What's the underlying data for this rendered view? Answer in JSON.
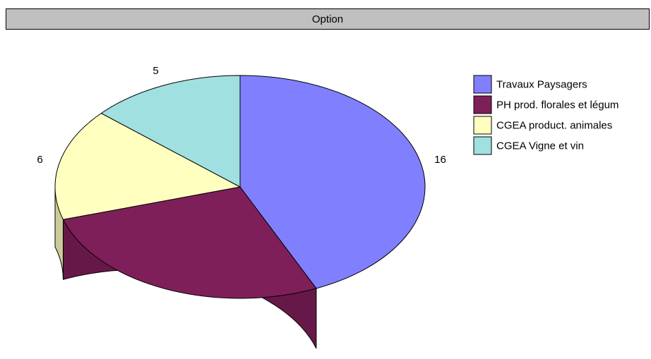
{
  "chart_data": {
    "type": "pie",
    "title": "Option",
    "categories": [
      "Travaux Paysagers",
      "PH prod. florales et légum",
      "CGEA product. animales",
      "CGEA Vigne et vin"
    ],
    "values": [
      16,
      10,
      6,
      5
    ],
    "colors": [
      "#8080ff",
      "#7f1f5a",
      "#ffffc0",
      "#a0e0e0"
    ],
    "legend_position": "right",
    "style": "3d"
  }
}
